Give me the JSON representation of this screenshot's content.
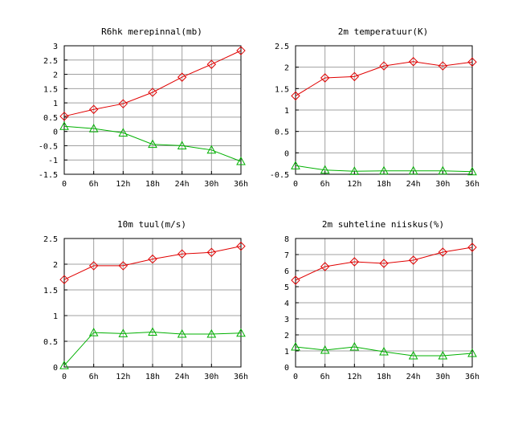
{
  "colors": {
    "series_red": "#e00000",
    "series_green": "#00b000",
    "grid": "#a0a0a0",
    "frame": "#000000"
  },
  "chart_data": [
    {
      "type": "line",
      "title": "R6hk merepinnal(mb)",
      "categories": [
        "0",
        "6h",
        "12h",
        "18h",
        "24h",
        "30h",
        "36h"
      ],
      "ylim": [
        -1.5,
        3
      ],
      "yticks": [
        "-1.5",
        "-1",
        "-0.5",
        "0",
        "0.5",
        "1",
        "1.5",
        "2",
        "2.5",
        "3"
      ],
      "grid": true,
      "series": [
        {
          "color": "#e00000",
          "marker": "diamond",
          "values": [
            0.53,
            0.77,
            0.97,
            1.37,
            1.9,
            2.35,
            2.83
          ]
        },
        {
          "color": "#00b000",
          "marker": "triangle",
          "values": [
            0.18,
            0.1,
            -0.05,
            -0.45,
            -0.5,
            -0.65,
            -1.05
          ]
        }
      ]
    },
    {
      "type": "line",
      "title": "2m temperatuur(K)",
      "categories": [
        "0",
        "6h",
        "12h",
        "18h",
        "24h",
        "30h",
        "36h"
      ],
      "ylim": [
        -0.5,
        2.5
      ],
      "yticks": [
        "-0.5",
        "0",
        "0.5",
        "1",
        "1.5",
        "2",
        "2.5"
      ],
      "grid": true,
      "series": [
        {
          "color": "#e00000",
          "marker": "diamond",
          "values": [
            1.33,
            1.75,
            1.78,
            2.03,
            2.13,
            2.03,
            2.12
          ]
        },
        {
          "color": "#00b000",
          "marker": "triangle",
          "values": [
            -0.3,
            -0.4,
            -0.43,
            -0.42,
            -0.42,
            -0.42,
            -0.44
          ]
        }
      ]
    },
    {
      "type": "line",
      "title": "10m tuul(m/s)",
      "categories": [
        "0",
        "6h",
        "12h",
        "18h",
        "24h",
        "30h",
        "36h"
      ],
      "ylim": [
        0,
        2.5
      ],
      "yticks": [
        "0",
        "0.5",
        "1",
        "1.5",
        "2",
        "2.5"
      ],
      "grid": true,
      "series": [
        {
          "color": "#e00000",
          "marker": "diamond",
          "values": [
            1.7,
            1.97,
            1.97,
            2.1,
            2.2,
            2.23,
            2.35
          ]
        },
        {
          "color": "#00b000",
          "marker": "triangle",
          "values": [
            0.03,
            0.67,
            0.65,
            0.68,
            0.64,
            0.64,
            0.66
          ]
        }
      ]
    },
    {
      "type": "line",
      "title": "2m suhteline niiskus(%)",
      "categories": [
        "0",
        "6h",
        "12h",
        "18h",
        "24h",
        "30h",
        "36h"
      ],
      "ylim": [
        0,
        8
      ],
      "yticks": [
        "0",
        "1",
        "2",
        "3",
        "4",
        "5",
        "6",
        "7",
        "8"
      ],
      "grid": true,
      "series": [
        {
          "color": "#e00000",
          "marker": "diamond",
          "values": [
            5.4,
            6.25,
            6.55,
            6.45,
            6.65,
            7.15,
            7.45
          ]
        },
        {
          "color": "#00b000",
          "marker": "triangle",
          "values": [
            1.25,
            1.05,
            1.25,
            0.95,
            0.7,
            0.7,
            0.85
          ]
        }
      ]
    }
  ]
}
